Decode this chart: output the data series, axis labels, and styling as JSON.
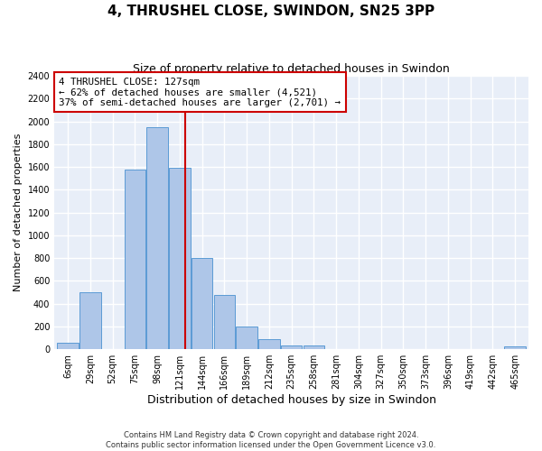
{
  "title": "4, THRUSHEL CLOSE, SWINDON, SN25 3PP",
  "subtitle": "Size of property relative to detached houses in Swindon",
  "xlabel": "Distribution of detached houses by size in Swindon",
  "ylabel": "Number of detached properties",
  "footer_line1": "Contains HM Land Registry data © Crown copyright and database right 2024.",
  "footer_line2": "Contains public sector information licensed under the Open Government Licence v3.0.",
  "categories": [
    "6sqm",
    "29sqm",
    "52sqm",
    "75sqm",
    "98sqm",
    "121sqm",
    "144sqm",
    "166sqm",
    "189sqm",
    "212sqm",
    "235sqm",
    "258sqm",
    "281sqm",
    "304sqm",
    "327sqm",
    "350sqm",
    "373sqm",
    "396sqm",
    "419sqm",
    "442sqm",
    "465sqm"
  ],
  "values": [
    60,
    500,
    0,
    1580,
    1950,
    1590,
    800,
    480,
    200,
    90,
    35,
    30,
    5,
    5,
    0,
    0,
    0,
    0,
    0,
    0,
    25
  ],
  "bar_color": "#aec6e8",
  "bar_edge_color": "#5b9bd5",
  "property_line_color": "#cc0000",
  "annotation_text": "4 THRUSHEL CLOSE: 127sqm\n← 62% of detached houses are smaller (4,521)\n37% of semi-detached houses are larger (2,701) →",
  "annotation_box_color": "#ffffff",
  "annotation_box_edge_color": "#cc0000",
  "ylim": [
    0,
    2400
  ],
  "yticks": [
    0,
    200,
    400,
    600,
    800,
    1000,
    1200,
    1400,
    1600,
    1800,
    2000,
    2200,
    2400
  ],
  "axes_background": "#e8eef8",
  "grid_color": "#ffffff",
  "title_fontsize": 11,
  "subtitle_fontsize": 9,
  "tick_fontsize": 7,
  "ylabel_fontsize": 8,
  "xlabel_fontsize": 9
}
